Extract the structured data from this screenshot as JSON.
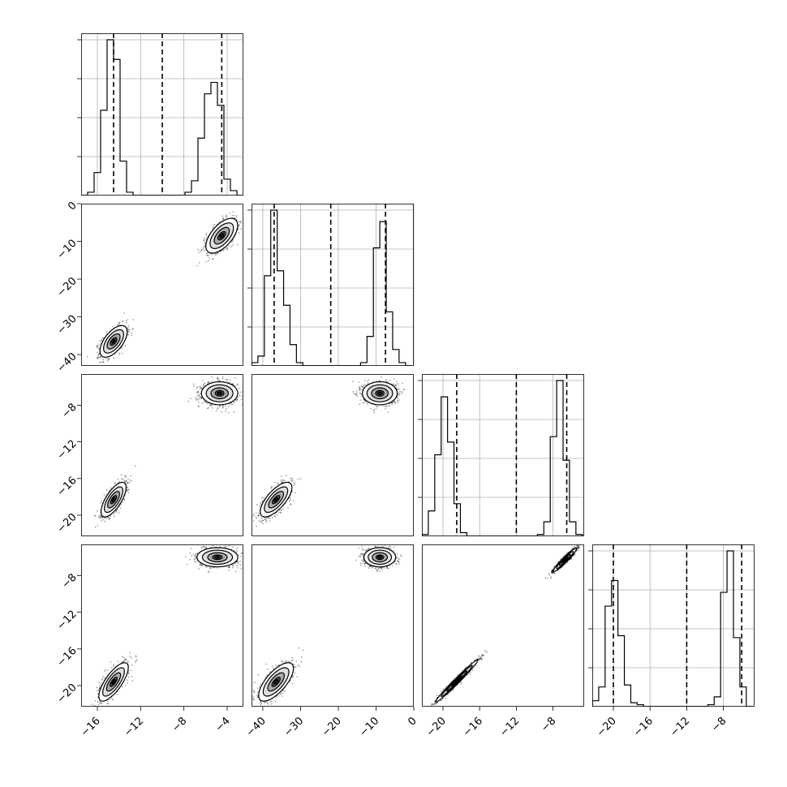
{
  "chart_data": {
    "type": "corner",
    "grid": true,
    "parameters": [
      {
        "lim": [
          -17.5,
          -2.5
        ],
        "ticks": [
          -16,
          -12,
          -8,
          -4
        ],
        "tick_labels": [
          "−16",
          "−12",
          "−8",
          "−4"
        ],
        "quantiles": [
          -14.5,
          -10.0,
          -4.5
        ]
      },
      {
        "lim": [
          -43,
          0
        ],
        "ticks": [
          -40,
          -30,
          -20,
          -10,
          0
        ],
        "tick_labels": [
          "−40",
          "−30",
          "−20",
          "−10",
          "0"
        ],
        "quantiles": [
          -37.0,
          -22.0,
          -7.5
        ]
      },
      {
        "lim": [
          -22.3,
          -4.6
        ],
        "ticks": [
          -20,
          -16,
          -12,
          -8
        ],
        "tick_labels": [
          "−20",
          "−16",
          "−12",
          "−8"
        ],
        "quantiles": [
          -18.5,
          -12.0,
          -6.5
        ]
      },
      {
        "lim": [
          -22.3,
          -4.6
        ],
        "ticks": [
          -20,
          -16,
          -12,
          -8
        ],
        "tick_labels": [
          "−20",
          "−16",
          "−12",
          "−8"
        ],
        "quantiles": [
          -20.0,
          -12.0,
          -6.0
        ]
      }
    ],
    "histograms": [
      {
        "param": 0,
        "edges": [
          -17.5,
          -16.9,
          -16.3,
          -15.7,
          -15.1,
          -14.5,
          -13.9,
          -13.3,
          -12.7,
          -12.1,
          -11.5,
          -10.9,
          -10.3,
          -9.7,
          -9.1,
          -8.5,
          -7.9,
          -7.3,
          -6.7,
          -6.1,
          -5.5,
          -4.9,
          -4.3,
          -3.7,
          -3.1,
          -2.5
        ],
        "counts": [
          0.0,
          0.02,
          0.14,
          0.52,
          0.95,
          0.83,
          0.21,
          0.02,
          0,
          0,
          0,
          0,
          0,
          0,
          0,
          0,
          0.02,
          0.09,
          0.35,
          0.62,
          0.69,
          0.55,
          0.1,
          0.03,
          0
        ]
      },
      {
        "param": 1,
        "edges": [
          -43,
          -41.3,
          -39.6,
          -37.9,
          -36.2,
          -34.5,
          -32.8,
          -31.1,
          -29.4,
          -27.7,
          -26.0,
          -24.3,
          -22.6,
          -20.9,
          -19.2,
          -17.5,
          -15.8,
          -14.1,
          -12.4,
          -10.7,
          -9.0,
          -7.3,
          -5.6,
          -3.9,
          -2.2,
          -0.5
        ],
        "counts": [
          0.02,
          0.06,
          0.55,
          0.95,
          0.58,
          0.37,
          0.13,
          0.02,
          0,
          0,
          0,
          0,
          0,
          0,
          0,
          0,
          0,
          0.02,
          0.18,
          0.72,
          0.88,
          0.33,
          0.1,
          0.02,
          0
        ]
      },
      {
        "param": 2,
        "edges": [
          -22.3,
          -21.6,
          -20.9,
          -20.2,
          -19.5,
          -18.8,
          -18.1,
          -17.4,
          -16.7,
          -16.0,
          -15.3,
          -14.6,
          -13.9,
          -13.2,
          -12.5,
          -11.8,
          -11.1,
          -10.4,
          -9.7,
          -9.0,
          -8.3,
          -7.6,
          -6.9,
          -6.2,
          -5.5,
          -4.8
        ],
        "counts": [
          0.01,
          0.14,
          0.45,
          0.77,
          0.52,
          0.18,
          0.02,
          0,
          0,
          0,
          0,
          0,
          0,
          0,
          0,
          0,
          0,
          0,
          0.01,
          0.08,
          0.55,
          0.86,
          0.42,
          0.08,
          0.01
        ]
      },
      {
        "param": 3,
        "edges": [
          -22.3,
          -21.6,
          -20.9,
          -20.2,
          -19.5,
          -18.8,
          -18.1,
          -17.4,
          -16.7,
          -16.0,
          -15.3,
          -14.6,
          -13.9,
          -13.2,
          -12.5,
          -11.8,
          -11.1,
          -10.4,
          -9.7,
          -9.0,
          -8.3,
          -7.6,
          -6.9,
          -6.2,
          -5.5,
          -4.8
        ],
        "counts": [
          0.03,
          0.1,
          0.51,
          0.64,
          0.36,
          0.11,
          0.02,
          0.01,
          0,
          0,
          0,
          0,
          0,
          0,
          0,
          0,
          0,
          0,
          0.01,
          0.05,
          0.58,
          0.79,
          0.35,
          0.1,
          0
        ]
      }
    ],
    "scatter_panels": [
      {
        "x_param": 0,
        "y_param": 1,
        "clusters": [
          {
            "mean": [
              -14.5,
              -36.5
            ],
            "sd": [
              0.6,
              2.0
            ],
            "corr": 0.6,
            "n": 900
          },
          {
            "mean": [
              -4.5,
              -8.5
            ],
            "sd": [
              0.7,
              2.2
            ],
            "corr": 0.6,
            "n": 1000
          }
        ]
      },
      {
        "x_param": 0,
        "y_param": 2,
        "clusters": [
          {
            "mean": [
              -14.5,
              -18.3
            ],
            "sd": [
              0.55,
              0.9
            ],
            "corr": 0.7,
            "n": 900
          },
          {
            "mean": [
              -4.7,
              -6.7
            ],
            "sd": [
              0.8,
              0.6
            ],
            "corr": 0.0,
            "n": 1000
          }
        ]
      },
      {
        "x_param": 1,
        "y_param": 2,
        "clusters": [
          {
            "mean": [
              -36.5,
              -18.3
            ],
            "sd": [
              2.0,
              0.9
            ],
            "corr": 0.7,
            "n": 900
          },
          {
            "mean": [
              -9.0,
              -6.7
            ],
            "sd": [
              2.2,
              0.6
            ],
            "corr": 0.0,
            "n": 1000
          }
        ]
      },
      {
        "x_param": 0,
        "y_param": 3,
        "clusters": [
          {
            "mean": [
              -14.5,
              -19.6
            ],
            "sd": [
              0.65,
              1.0
            ],
            "corr": 0.75,
            "n": 900
          },
          {
            "mean": [
              -4.9,
              -6.0
            ],
            "sd": [
              0.9,
              0.5
            ],
            "corr": 0.0,
            "n": 1000
          }
        ]
      },
      {
        "x_param": 1,
        "y_param": 3,
        "clusters": [
          {
            "mean": [
              -36.5,
              -19.6
            ],
            "sd": [
              2.2,
              1.0
            ],
            "corr": 0.7,
            "n": 900
          },
          {
            "mean": [
              -9.0,
              -6.0
            ],
            "sd": [
              2.0,
              0.5
            ],
            "corr": 0.0,
            "n": 1000
          }
        ]
      },
      {
        "x_param": 2,
        "y_param": 3,
        "clusters": [
          {
            "mean": [
              -18.5,
              -19.5
            ],
            "sd": [
              1.1,
              1.1
            ],
            "corr": 0.985,
            "n": 900
          },
          {
            "mean": [
              -6.7,
              -6.3
            ],
            "sd": [
              0.6,
              0.6
            ],
            "corr": 0.95,
            "n": 1000
          }
        ]
      }
    ]
  }
}
